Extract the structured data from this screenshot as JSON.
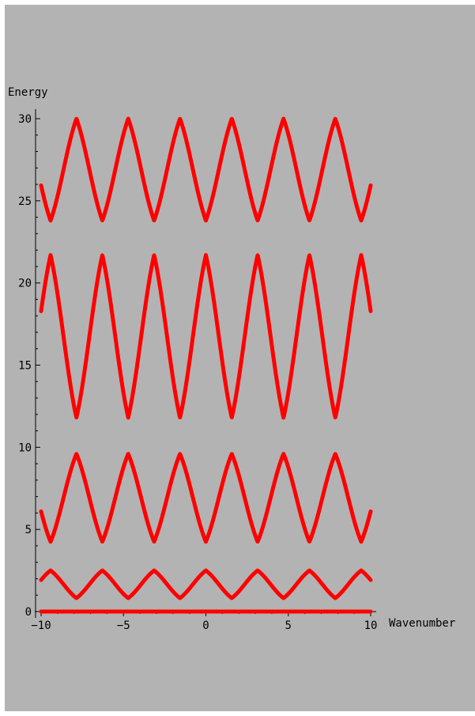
{
  "chart_data": {
    "type": "line",
    "title": "",
    "xlabel": "Wavenumber",
    "ylabel": "Energy",
    "xlim": [
      -10,
      10
    ],
    "ylim": [
      0,
      30
    ],
    "x_ticks": [
      -10,
      -5,
      0,
      5,
      10
    ],
    "y_ticks": [
      0,
      5,
      10,
      15,
      20,
      25,
      30
    ],
    "grid": false,
    "line_color": "#ff0000",
    "background_color": "#b3b3b3",
    "band_period": 3.1416,
    "series": [
      {
        "x_min_points": [
          -10,
          10
        ],
        "values": [
          0,
          0
        ]
      },
      {
        "band_min": 0.82,
        "band_max": 2.5,
        "max_at_x": 0
      },
      {
        "band_min": 4.25,
        "band_max": 9.6,
        "max_at_x": 1.5708
      },
      {
        "band_min": 11.8,
        "band_max": 21.7,
        "max_at_x": 0
      },
      {
        "band_min": 23.8,
        "band_max": 30,
        "max_at_x": 1.5708
      }
    ]
  }
}
